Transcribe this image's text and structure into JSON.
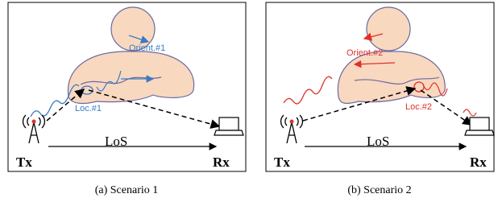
{
  "panels": [
    {
      "orientation_label": "Orient.#1",
      "location_label": "Loc.#1",
      "tx": "Tx",
      "los": "LoS",
      "rx": "Rx",
      "caption": "(a) Scenario 1"
    },
    {
      "orientation_label": "Orient.#2",
      "location_label": "Loc.#2",
      "tx": "Tx",
      "los": "LoS",
      "rx": "Rx",
      "caption": "(b) Scenario 2"
    }
  ]
}
